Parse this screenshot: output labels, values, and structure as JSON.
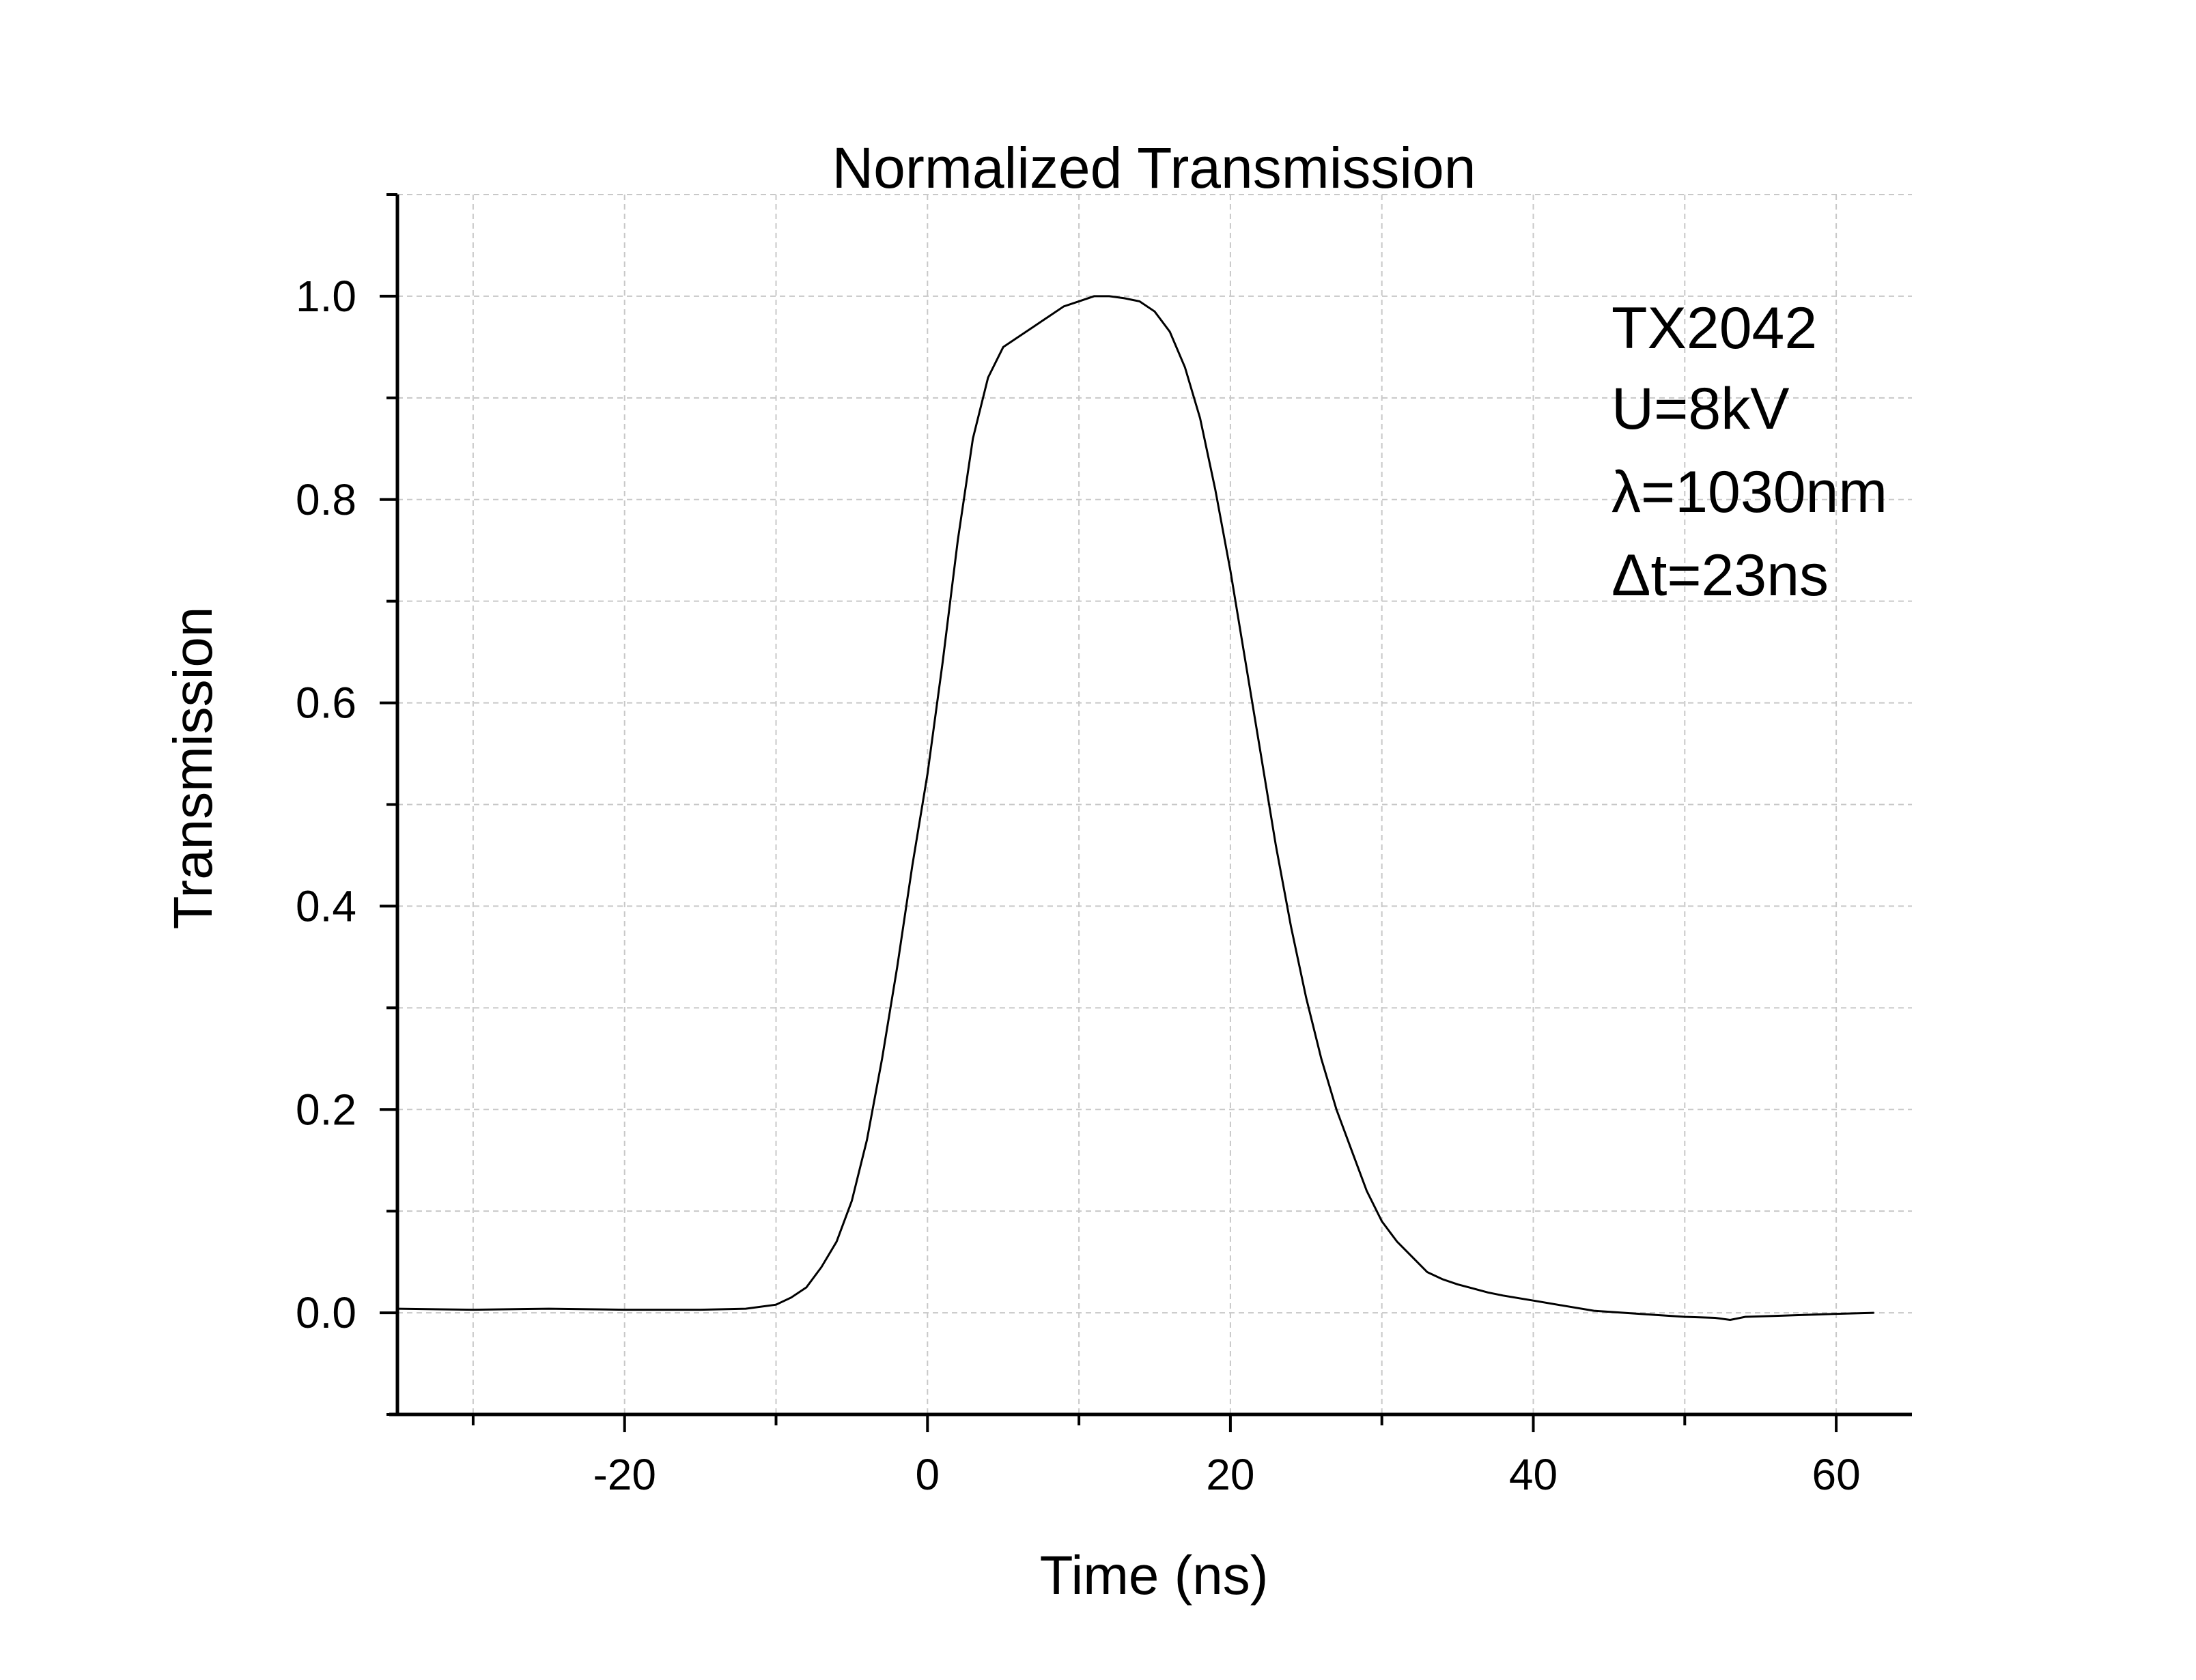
{
  "chart_data": {
    "type": "line",
    "title": "Normalized Transmission",
    "xlabel": "Time (ns)",
    "ylabel": "Transmission",
    "xlim": [
      -35,
      65
    ],
    "ylim": [
      -0.1,
      1.1
    ],
    "grid": true,
    "legend": "none",
    "x_ticks": [
      -20,
      0,
      20,
      40,
      60
    ],
    "y_ticks": [
      0.0,
      0.2,
      0.4,
      0.6,
      0.8,
      1.0
    ],
    "x_tick_labels": [
      "-20",
      "0",
      "20",
      "40",
      "60"
    ],
    "y_tick_labels": [
      "0.0",
      "0.2",
      "0.4",
      "0.6",
      "0.8",
      "1.0"
    ],
    "annotations": [
      "TX2042",
      "U=8kV",
      "λ=1030nm",
      "Δt=23ns"
    ],
    "series": [
      {
        "color": "#000000",
        "x": [
          -35,
          -30,
          -25,
          -20,
          -15,
          -12,
          -10,
          -9,
          -8,
          -7,
          -6,
          -5,
          -4,
          -3,
          -2,
          -1,
          0,
          1,
          2,
          3,
          4,
          5,
          6,
          7,
          8,
          9,
          10,
          11,
          12,
          13,
          14,
          15,
          16,
          17,
          18,
          19,
          20,
          21,
          22,
          23,
          24,
          25,
          26,
          27,
          28,
          29,
          30,
          31,
          32,
          33,
          34,
          35,
          36,
          37,
          38,
          40,
          42,
          44,
          46,
          48,
          50,
          52,
          53,
          54,
          56,
          58,
          60,
          62.5
        ],
        "y": [
          0.004,
          0.003,
          0.004,
          0.003,
          0.003,
          0.004,
          0.008,
          0.015,
          0.025,
          0.045,
          0.07,
          0.11,
          0.17,
          0.25,
          0.34,
          0.44,
          0.53,
          0.64,
          0.76,
          0.86,
          0.92,
          0.95,
          0.96,
          0.97,
          0.98,
          0.99,
          0.995,
          1.0,
          1.0,
          0.998,
          0.995,
          0.985,
          0.965,
          0.93,
          0.88,
          0.81,
          0.73,
          0.64,
          0.55,
          0.46,
          0.38,
          0.31,
          0.25,
          0.2,
          0.16,
          0.12,
          0.09,
          0.07,
          0.055,
          0.04,
          0.033,
          0.028,
          0.024,
          0.02,
          0.017,
          0.012,
          0.007,
          0.002,
          0.0,
          -0.002,
          -0.004,
          -0.005,
          -0.007,
          -0.004,
          -0.003,
          -0.002,
          -0.001,
          0.0
        ]
      }
    ]
  }
}
